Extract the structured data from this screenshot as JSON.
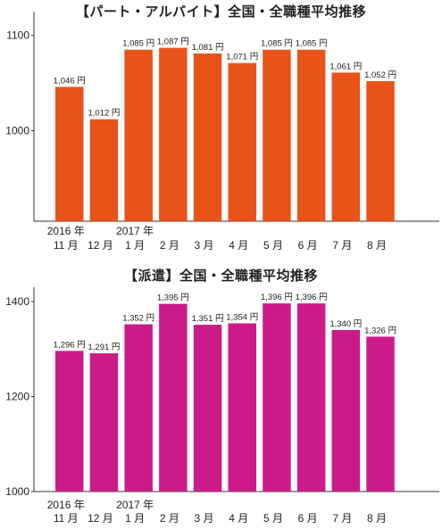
{
  "chart_data": [
    {
      "type": "bar",
      "title": "【パート・アルバイト】全国・全職種平均推移",
      "categories": [
        [
          "2016 年",
          "11 月"
        ],
        [
          "",
          "12 月"
        ],
        [
          "2017 年",
          "1 月"
        ],
        [
          "",
          "2 月"
        ],
        [
          "",
          "3 月"
        ],
        [
          "",
          "4 月"
        ],
        [
          "",
          "5 月"
        ],
        [
          "",
          "6 月"
        ],
        [
          "",
          "7 月"
        ],
        [
          "",
          "8 月"
        ]
      ],
      "values": [
        1046,
        1012,
        1085,
        1087,
        1081,
        1071,
        1085,
        1085,
        1061,
        1052
      ],
      "data_labels": [
        "1,046 円",
        "1,012 円",
        "1,085 円",
        "1,087 円",
        "1,081 円",
        "1,071 円",
        "1,085 円",
        "1,085 円",
        "1,061 円",
        "1,052 円"
      ],
      "yticks": [
        1000,
        1100
      ],
      "ylim": [
        905,
        1125
      ],
      "color": "#e8531a",
      "grid": false
    },
    {
      "type": "bar",
      "title": "【派遣】全国・全職種平均推移",
      "categories": [
        [
          "2016 年",
          "11 月"
        ],
        [
          "",
          "12 月"
        ],
        [
          "2017 年",
          "1 月"
        ],
        [
          "",
          "2 月"
        ],
        [
          "",
          "3 月"
        ],
        [
          "",
          "4 月"
        ],
        [
          "",
          "5 月"
        ],
        [
          "",
          "6 月"
        ],
        [
          "",
          "7 月"
        ],
        [
          "",
          "8 月"
        ]
      ],
      "values": [
        1296,
        1291,
        1352,
        1395,
        1351,
        1354,
        1396,
        1396,
        1340,
        1326
      ],
      "data_labels": [
        "1,296 円",
        "1,291 円",
        "1,352 円",
        "1,395 円",
        "1,351 円",
        "1,354 円",
        "1,396 円",
        "1,396 円",
        "1,340 円",
        "1,326 円"
      ],
      "yticks": [
        1000,
        1200,
        1400
      ],
      "ylim": [
        1000,
        1430
      ],
      "color": "#cc1a8a",
      "grid": false
    }
  ]
}
